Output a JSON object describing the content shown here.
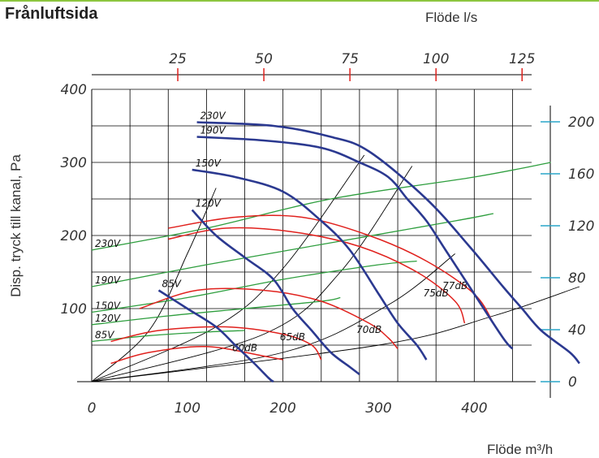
{
  "heading": "Frånluftsida",
  "chart_data": {
    "type": "line",
    "title": "Frånluftsida",
    "xlabel": "Flöde m³/h",
    "x2label": "Flöde l/s",
    "ylabel": "Disp. tryck till kanal, Pa",
    "xlim": [
      0,
      460
    ],
    "ylim": [
      0,
      400
    ],
    "x_ticks": [
      0,
      100,
      200,
      300,
      400
    ],
    "y_ticks": [
      100,
      200,
      300,
      400
    ],
    "top_ticks": [
      25,
      50,
      75,
      100,
      125
    ],
    "right_ticks": [
      0,
      40,
      80,
      120,
      160,
      200
    ],
    "grid": true,
    "fan_curves": [
      {
        "name": "230V",
        "points": [
          [
            110,
            355
          ],
          [
            190,
            350
          ],
          [
            250,
            335
          ],
          [
            290,
            315
          ],
          [
            350,
            250
          ],
          [
            395,
            185
          ],
          [
            430,
            130
          ],
          [
            450,
            100
          ],
          [
            470,
            70
          ],
          [
            500,
            40
          ],
          [
            510,
            25
          ]
        ]
      },
      {
        "name": "190V",
        "points": [
          [
            110,
            335
          ],
          [
            180,
            330
          ],
          [
            240,
            320
          ],
          [
            280,
            300
          ],
          [
            310,
            280
          ],
          [
            330,
            250
          ],
          [
            350,
            220
          ],
          [
            370,
            180
          ],
          [
            400,
            120
          ],
          [
            430,
            60
          ],
          [
            440,
            45
          ]
        ]
      },
      {
        "name": "150V",
        "points": [
          [
            105,
            290
          ],
          [
            150,
            280
          ],
          [
            200,
            260
          ],
          [
            240,
            220
          ],
          [
            270,
            180
          ],
          [
            300,
            120
          ],
          [
            320,
            80
          ],
          [
            340,
            50
          ],
          [
            350,
            30
          ]
        ]
      },
      {
        "name": "120V",
        "points": [
          [
            105,
            235
          ],
          [
            130,
            200
          ],
          [
            160,
            170
          ],
          [
            190,
            140
          ],
          [
            210,
            100
          ],
          [
            230,
            70
          ],
          [
            250,
            40
          ],
          [
            270,
            20
          ],
          [
            280,
            10
          ]
        ]
      },
      {
        "name": "85V",
        "points": [
          [
            70,
            125
          ],
          [
            100,
            100
          ],
          [
            130,
            75
          ],
          [
            150,
            50
          ],
          [
            170,
            25
          ],
          [
            185,
            5
          ],
          [
            190,
            0
          ]
        ]
      }
    ],
    "system_curves": [
      {
        "points": [
          [
            0,
            0
          ],
          [
            60,
            70
          ],
          [
            100,
            175
          ],
          [
            130,
            265
          ]
        ]
      },
      {
        "points": [
          [
            0,
            0
          ],
          [
            130,
            75
          ],
          [
            200,
            155
          ],
          [
            285,
            310
          ]
        ]
      },
      {
        "points": [
          [
            0,
            0
          ],
          [
            180,
            65
          ],
          [
            260,
            150
          ],
          [
            335,
            295
          ]
        ]
      },
      {
        "points": [
          [
            0,
            0
          ],
          [
            200,
            40
          ],
          [
            310,
            105
          ],
          [
            380,
            175
          ]
        ]
      },
      {
        "points": [
          [
            0,
            0
          ],
          [
            300,
            50
          ],
          [
            420,
            90
          ],
          [
            510,
            130
          ]
        ]
      }
    ],
    "sound_curves": [
      {
        "name": "60dB",
        "points": [
          [
            20,
            25
          ],
          [
            60,
            40
          ],
          [
            120,
            48
          ],
          [
            180,
            35
          ],
          [
            200,
            30
          ]
        ]
      },
      {
        "name": "65dB",
        "points": [
          [
            20,
            55
          ],
          [
            70,
            70
          ],
          [
            140,
            75
          ],
          [
            200,
            65
          ],
          [
            230,
            50
          ],
          [
            240,
            30
          ]
        ]
      },
      {
        "name": "70dB",
        "points": [
          [
            50,
            100
          ],
          [
            110,
            125
          ],
          [
            180,
            125
          ],
          [
            240,
            110
          ],
          [
            290,
            80
          ],
          [
            310,
            60
          ],
          [
            320,
            45
          ]
        ]
      },
      {
        "name": "75dB",
        "points": [
          [
            80,
            195
          ],
          [
            140,
            210
          ],
          [
            210,
            205
          ],
          [
            280,
            185
          ],
          [
            340,
            150
          ],
          [
            380,
            110
          ],
          [
            390,
            80
          ]
        ]
      },
      {
        "name": "77dB",
        "points": [
          [
            80,
            210
          ],
          [
            150,
            225
          ],
          [
            220,
            225
          ],
          [
            290,
            200
          ],
          [
            350,
            165
          ],
          [
            400,
            120
          ],
          [
            420,
            80
          ]
        ]
      }
    ],
    "voltage_lines": [
      {
        "name": "230V",
        "points": [
          [
            0,
            180
          ],
          [
            120,
            210
          ],
          [
            250,
            250
          ],
          [
            400,
            280
          ],
          [
            480,
            300
          ]
        ]
      },
      {
        "name": "190V",
        "points": [
          [
            0,
            130
          ],
          [
            120,
            160
          ],
          [
            250,
            190
          ],
          [
            380,
            220
          ],
          [
            420,
            230
          ]
        ]
      },
      {
        "name": "150V",
        "points": [
          [
            0,
            95
          ],
          [
            100,
            115
          ],
          [
            200,
            140
          ],
          [
            300,
            160
          ],
          [
            340,
            165
          ]
        ]
      },
      {
        "name": "120V",
        "points": [
          [
            0,
            78
          ],
          [
            80,
            90
          ],
          [
            160,
            100
          ],
          [
            240,
            110
          ],
          [
            260,
            115
          ]
        ]
      },
      {
        "name": "85V",
        "points": [
          [
            0,
            55
          ],
          [
            60,
            63
          ],
          [
            120,
            68
          ],
          [
            160,
            70
          ]
        ]
      }
    ]
  }
}
